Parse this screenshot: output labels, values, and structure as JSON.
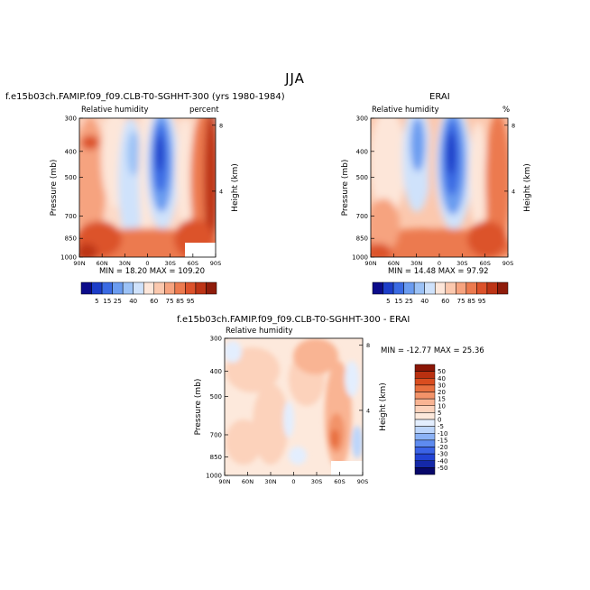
{
  "main_title": "JJA",
  "colors": {
    "blues": [
      "#0b0b8a",
      "#1c3dc8",
      "#3a6ae3",
      "#6b9cf0",
      "#9cc2f6",
      "#cfe2fb"
    ],
    "oranges": [
      "#fde6d9",
      "#fbc8ae",
      "#f6a37f",
      "#ec7a4f",
      "#dc522b",
      "#bd3416",
      "#8f1c0b"
    ],
    "diff_scale": [
      "#08086a",
      "#1428a8",
      "#2243d4",
      "#3b63e6",
      "#5e8bf0",
      "#8bb2f6",
      "#bcd5fb",
      "#e3eefe",
      "#fde9dc",
      "#fcd2bb",
      "#f9b493",
      "#f29369",
      "#e8703f",
      "#d94d1f",
      "#b93010",
      "#8b1606"
    ]
  },
  "panels": {
    "model": {
      "case_title": "f.e15b03ch.FAMIP.f09_f09.CLB-T0-SGHHT-300 (yrs 1980-1984)",
      "variable": "Relative humidity",
      "units": "percent",
      "ylabel": "Pressure (mb)",
      "right_label": "Height (km)",
      "stats": "MIN =  18.20   MAX = 109.20"
    },
    "obs": {
      "case_title": "ERAI",
      "variable": "Relative humidity",
      "units": "%",
      "ylabel": "Pressure (mb)",
      "right_label": "Height (km)",
      "stats": "MIN =  14.48   MAX =  97.92"
    },
    "diff": {
      "case_title": "f.e15b03ch.FAMIP.f09_f09.CLB-T0-SGHHT-300 - ERAI",
      "variable": "Relative humidity",
      "ylabel": "Pressure (mb)",
      "right_label": "Height (km)",
      "stats": "MIN = -12.77   MAX =  25.36"
    }
  },
  "axes": {
    "x_ticks": [
      "90N",
      "60N",
      "30N",
      "0",
      "30S",
      "60S",
      "90S"
    ],
    "y_ticks": [
      "300",
      "400",
      "500",
      "700",
      "850",
      "1000"
    ],
    "height_ticks": [
      "8",
      "4"
    ]
  },
  "colorbar": {
    "levels": [
      "5",
      "15",
      "25",
      "40",
      "60",
      "75",
      "85",
      "95"
    ],
    "diff_levels": [
      "50",
      "40",
      "30",
      "20",
      "15",
      "10",
      "5",
      "0",
      "-5",
      "-10",
      "-15",
      "-20",
      "-30",
      "-40",
      "-50"
    ]
  },
  "chart_data": [
    {
      "type": "heatmap",
      "title": "f.e15b03ch.FAMIP.f09_f09.CLB-T0-SGHHT-300 (yrs 1980-1984)",
      "subtitle": "Relative humidity",
      "units": "percent",
      "xlabel": "",
      "ylabel": "Pressure (mb)",
      "x": [
        "90N",
        "60N",
        "30N",
        "0",
        "30S",
        "60S",
        "90S"
      ],
      "y": [
        300,
        400,
        500,
        700,
        850,
        1000
      ],
      "values": [
        [
          50,
          45,
          35,
          40,
          20,
          45,
          70
        ],
        [
          55,
          50,
          35,
          45,
          18,
          55,
          85
        ],
        [
          60,
          55,
          40,
          50,
          25,
          60,
          90
        ],
        [
          70,
          60,
          40,
          60,
          30,
          70,
          95
        ],
        [
          80,
          70,
          55,
          70,
          50,
          75,
          100
        ],
        [
          85,
          80,
          70,
          75,
          75,
          85,
          109
        ]
      ],
      "min": 18.2,
      "max": 109.2
    },
    {
      "type": "heatmap",
      "title": "ERAI",
      "subtitle": "Relative humidity",
      "units": "%",
      "xlabel": "",
      "ylabel": "Pressure (mb)",
      "x": [
        "90N",
        "60N",
        "30N",
        "0",
        "30S",
        "60S",
        "90S"
      ],
      "y": [
        300,
        400,
        500,
        700,
        850,
        1000
      ],
      "values": [
        [
          45,
          40,
          30,
          40,
          15,
          40,
          60
        ],
        [
          50,
          45,
          25,
          45,
          14,
          50,
          70
        ],
        [
          60,
          55,
          30,
          50,
          20,
          55,
          75
        ],
        [
          70,
          60,
          35,
          60,
          25,
          65,
          80
        ],
        [
          80,
          70,
          50,
          70,
          45,
          75,
          85
        ],
        [
          85,
          80,
          75,
          80,
          70,
          85,
          97
        ]
      ],
      "min": 14.48,
      "max": 97.92
    },
    {
      "type": "heatmap",
      "title": "f.e15b03ch.FAMIP.f09_f09.CLB-T0-SGHHT-300 - ERAI",
      "subtitle": "Relative humidity",
      "xlabel": "",
      "ylabel": "Pressure (mb)",
      "x": [
        "90N",
        "60N",
        "30N",
        "0",
        "30S",
        "60S",
        "90S"
      ],
      "y": [
        300,
        400,
        500,
        700,
        850,
        1000
      ],
      "values": [
        [
          5,
          10,
          5,
          0,
          5,
          10,
          -5
        ],
        [
          5,
          10,
          10,
          5,
          5,
          10,
          5
        ],
        [
          5,
          5,
          10,
          5,
          10,
          10,
          5
        ],
        [
          5,
          10,
          5,
          0,
          5,
          15,
          5
        ],
        [
          5,
          5,
          5,
          0,
          5,
          25,
          -5
        ],
        [
          0,
          5,
          0,
          5,
          5,
          15,
          5
        ]
      ],
      "min": -12.77,
      "max": 25.36
    }
  ]
}
